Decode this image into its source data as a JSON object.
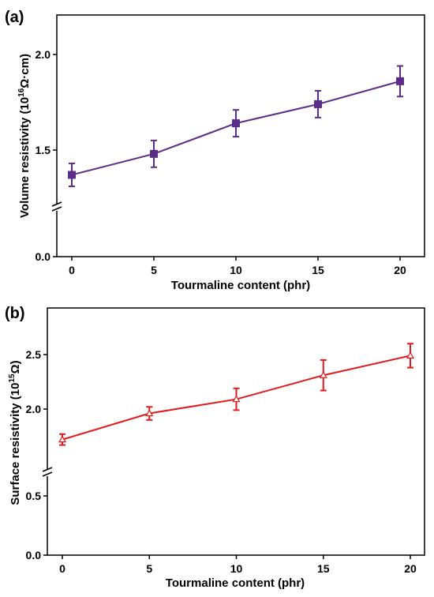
{
  "chart_data": [
    {
      "type": "line",
      "panel_label": "(a)",
      "xlabel": "Tourmaline content (phr)",
      "ylabel": "Volume resistivity (10",
      "ylabel_sup": "16",
      "ylabel_unit": "Ω·cm)",
      "x_ticks": [
        "0",
        "5",
        "10",
        "15",
        "20"
      ],
      "y_ticks": [
        "0.0",
        "1.5",
        "2.0"
      ],
      "axis_break": true,
      "grid": false,
      "color": "#5b2d86",
      "marker": "square",
      "series": [
        {
          "x": [
            0,
            5,
            10,
            15,
            20
          ],
          "values": [
            1.37,
            1.48,
            1.64,
            1.74,
            1.86
          ],
          "errors": [
            0.06,
            0.07,
            0.07,
            0.07,
            0.08
          ]
        }
      ]
    },
    {
      "type": "line",
      "panel_label": "(b)",
      "xlabel": "Tourmaline content (phr)",
      "ylabel": "Surface resistivity (10",
      "ylabel_sup": "15",
      "ylabel_unit": "Ω)",
      "x_ticks": [
        "0",
        "5",
        "10",
        "15",
        "20"
      ],
      "y_ticks": [
        "0.0",
        "0.5",
        "2.0",
        "2.5"
      ],
      "axis_break": true,
      "grid": false,
      "color": "#e31a1c",
      "marker": "open-triangle",
      "series": [
        {
          "x": [
            0,
            5,
            10,
            15,
            20
          ],
          "values": [
            1.72,
            1.96,
            2.09,
            2.31,
            2.49
          ],
          "errors": [
            0.05,
            0.06,
            0.1,
            0.14,
            0.11
          ]
        }
      ]
    }
  ]
}
